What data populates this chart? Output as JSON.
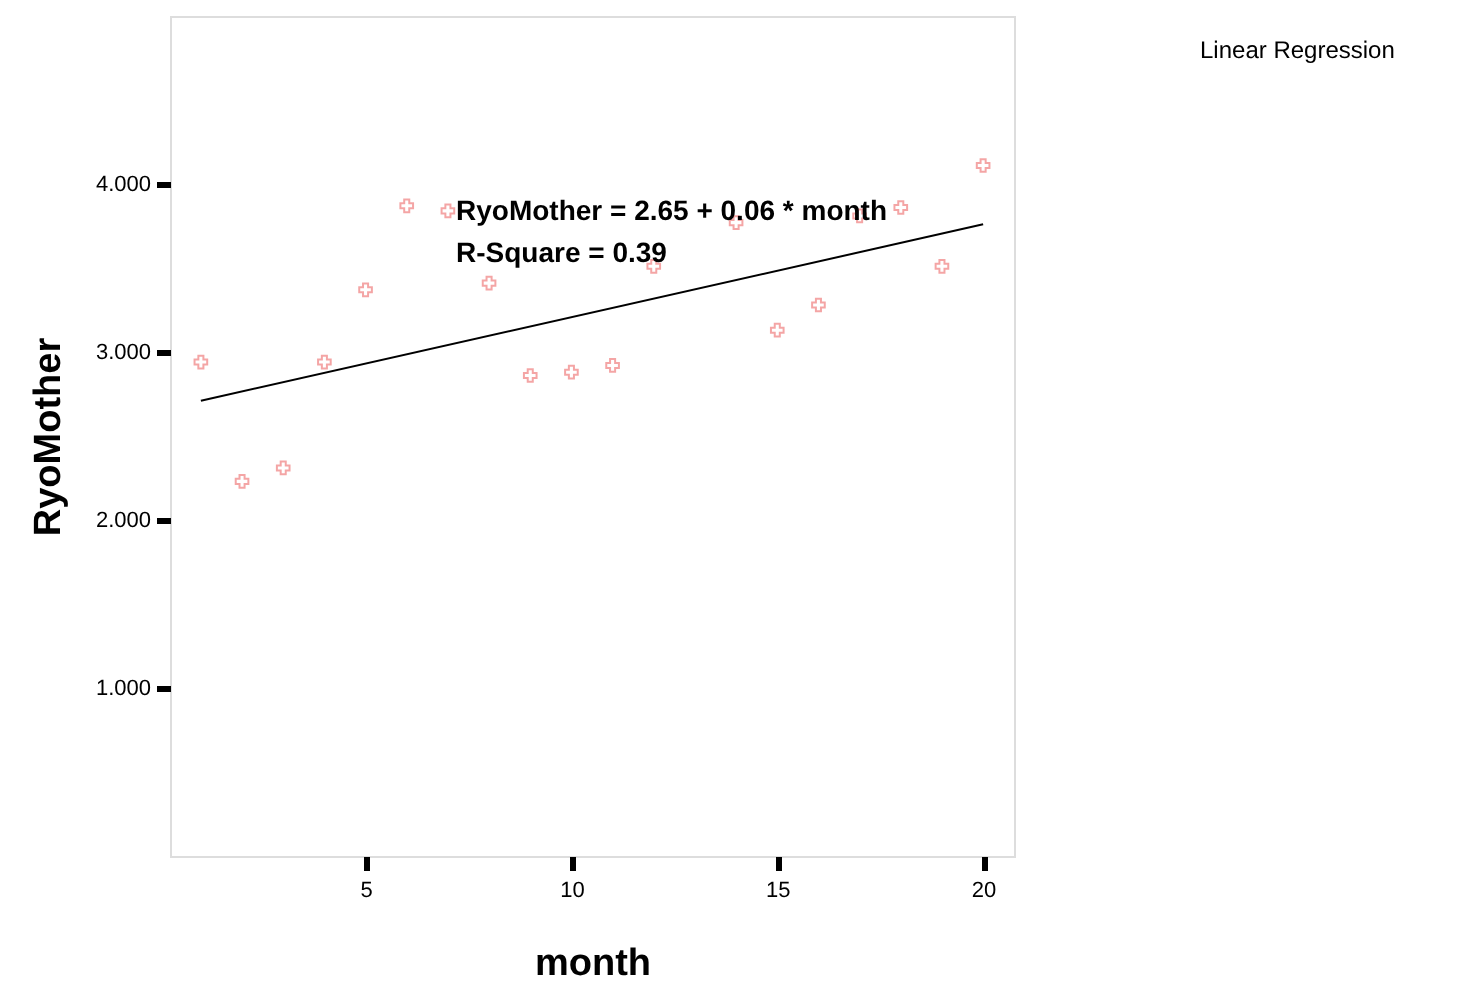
{
  "chart_data": {
    "type": "scatter",
    "xlabel": "month",
    "ylabel": "RyoMother",
    "xlim": [
      0.25,
      20.75
    ],
    "ylim": [
      0,
      5
    ],
    "xticks": [
      5,
      10,
      15,
      20
    ],
    "yticks": [
      {
        "value": 1,
        "label": "1.000"
      },
      {
        "value": 2,
        "label": "2.000"
      },
      {
        "value": 3,
        "label": "3.000"
      },
      {
        "value": 4,
        "label": "4.000"
      }
    ],
    "grid": false,
    "series": [
      {
        "marker": "cross",
        "color": "#f08080",
        "x": [
          1,
          2,
          3,
          4,
          5,
          6,
          7,
          8,
          9,
          10,
          11,
          12,
          14,
          15,
          16,
          17,
          18,
          19,
          20
        ],
        "values": [
          2.94,
          2.23,
          2.31,
          2.94,
          3.37,
          3.87,
          3.84,
          3.41,
          2.86,
          2.88,
          2.92,
          3.51,
          3.77,
          3.13,
          3.28,
          3.81,
          3.86,
          3.51,
          4.11
        ]
      },
      {
        "type": "line",
        "marker": "none",
        "line_style": "solid",
        "color": "#000000",
        "x": [
          1,
          20
        ],
        "values": [
          2.71,
          3.76
        ]
      }
    ],
    "annotations": [
      "RyoMother = 2.65 + 0.06 * month",
      "R-Square = 0.39",
      "Linear Regression"
    ]
  }
}
